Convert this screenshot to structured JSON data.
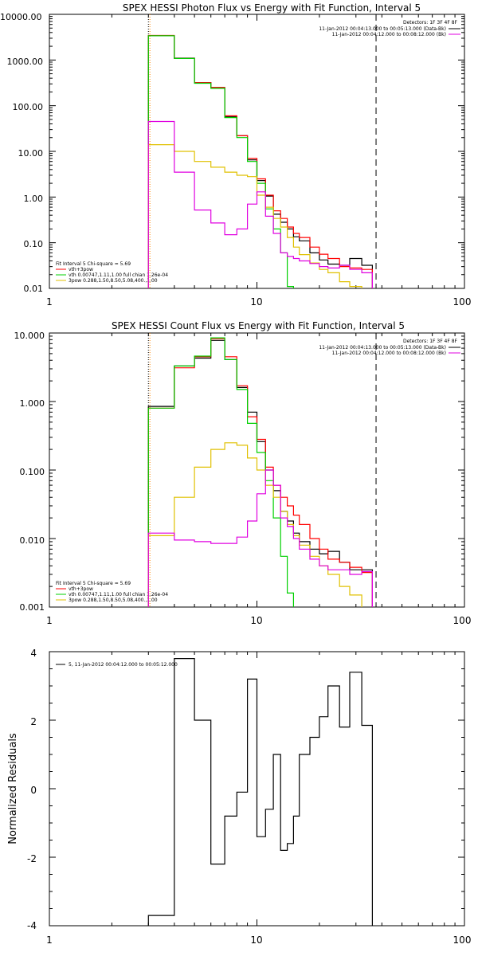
{
  "colors": {
    "black": "#000000",
    "red": "#ff0000",
    "green": "#00d000",
    "magenta": "#e000e0",
    "yellow": "#e0c000",
    "orange": "#ff8800"
  },
  "chart_data": [
    {
      "type": "line",
      "title": "SPEX HESSI Photon Flux vs Energy with Fit Function, Interval 5",
      "xscale": "log",
      "yscale": "log",
      "xlim": [
        1,
        100
      ],
      "ylim": [
        0.01,
        10000
      ],
      "xticks": [
        1,
        10,
        100
      ],
      "xtick_labels": [
        "1",
        "10",
        "100"
      ],
      "yticks": [
        0.01,
        0.1,
        1,
        10,
        100,
        1000,
        10000
      ],
      "ytick_labels": [
        "0.01",
        "0.10",
        "1.00",
        "10.00",
        "100.00",
        "1000.00",
        "10000.00"
      ],
      "vlines": [
        {
          "x": 3.0,
          "style": "dotted",
          "color": "black"
        },
        {
          "x": 3.05,
          "style": "dotted",
          "color": "orange"
        },
        {
          "x": 37.5,
          "style": "dashed",
          "color": "black"
        }
      ],
      "legend_top_right": [
        {
          "text": "Detectors: 1F 3F 4F 8F",
          "color": ""
        },
        {
          "text": "11-Jan-2012 00:04:13.000 to 00:05:13.000 (Data-Bk)",
          "color": "black"
        },
        {
          "text": "11-Jan-2012 00:04:12.000 to 00:08:12.000 (Bk)",
          "color": "magenta"
        }
      ],
      "legend_bottom_left": [
        {
          "text": "Fit Interval 5   Chi-square = 5.69",
          "color": ""
        },
        {
          "text": "vth+3pow",
          "color": "red"
        },
        {
          "text": "vth 0.00747,1.11,1.00  full chian 1.26e-04",
          "color": "green"
        },
        {
          "text": "3pow 0.288,1.50,8.50,5.08,400.,1.00",
          "color": "yellow"
        }
      ],
      "x_edges": [
        3.0,
        4.0,
        5.0,
        6.0,
        7.0,
        8.0,
        9.0,
        10.0,
        11.0,
        12.0,
        13.0,
        14.0,
        15.0,
        16.0,
        18.0,
        20.0,
        22.0,
        25.0,
        28.0,
        32.0,
        36.0
      ],
      "series": [
        {
          "color_key": "black",
          "values": [
            3400,
            1100,
            320,
            250,
            57,
            22,
            6.5,
            2.3,
            1.05,
            0.42,
            0.28,
            0.2,
            0.135,
            0.11,
            0.06,
            0.042,
            0.034,
            0.032,
            0.045,
            0.032
          ]
        },
        {
          "color_key": "red",
          "values": [
            3450,
            1080,
            320,
            250,
            60,
            22,
            7.0,
            2.5,
            1.1,
            0.5,
            0.34,
            0.22,
            0.16,
            0.13,
            0.08,
            0.056,
            0.045,
            0.03,
            0.028,
            0.026
          ]
        },
        {
          "color_key": "green",
          "values": [
            3400,
            1080,
            310,
            240,
            55,
            20,
            6.0,
            2.0,
            0.55,
            0.2,
            0.06,
            0.011,
            null,
            null,
            null,
            null,
            null,
            null,
            null,
            null
          ]
        },
        {
          "color_key": "yellow",
          "values": [
            14,
            10,
            6.0,
            4.5,
            3.5,
            3.0,
            2.8,
            1.1,
            0.6,
            0.34,
            0.22,
            0.13,
            0.08,
            0.055,
            0.036,
            0.026,
            0.022,
            0.014,
            0.011,
            null
          ]
        },
        {
          "color_key": "magenta",
          "values": [
            45,
            3.5,
            0.52,
            0.27,
            0.15,
            0.2,
            0.7,
            1.3,
            0.38,
            0.16,
            0.06,
            0.05,
            0.045,
            0.04,
            0.035,
            0.03,
            0.028,
            0.032,
            0.026,
            0.022
          ]
        }
      ]
    },
    {
      "type": "line",
      "title": "SPEX HESSI Count Flux vs Energy with Fit Function, Interval 5",
      "xscale": "log",
      "yscale": "log",
      "xlim": [
        1,
        100
      ],
      "ylim": [
        0.001,
        10
      ],
      "xticks": [
        1,
        10,
        100
      ],
      "xtick_labels": [
        "1",
        "10",
        "100"
      ],
      "yticks": [
        0.001,
        0.01,
        0.1,
        1,
        10
      ],
      "ytick_labels": [
        "0.001",
        "0.010",
        "0.100",
        "1.000",
        "10.000"
      ],
      "vlines": [
        {
          "x": 3.0,
          "style": "dotted",
          "color": "black"
        },
        {
          "x": 3.05,
          "style": "dotted",
          "color": "orange"
        },
        {
          "x": 37.5,
          "style": "dashed",
          "color": "black"
        }
      ],
      "legend_top_right": [
        {
          "text": "Detectors: 1F 3F 4F 8F",
          "color": ""
        },
        {
          "text": "11-Jan-2012 00:04:13.000 to 00:05:13.000 (Data-Bk)",
          "color": "black"
        },
        {
          "text": "11-Jan-2012 00:04:12.000 to 00:08:12.000 (Bk)",
          "color": "magenta"
        }
      ],
      "legend_bottom_left": [
        {
          "text": "Fit Interval 5   Chi-square = 5.69",
          "color": ""
        },
        {
          "text": "vth+3pow",
          "color": "red"
        },
        {
          "text": "vth 0.00747,1.11,1.00  full chian 1.26e-04",
          "color": "green"
        },
        {
          "text": "3pow 0.288,1.50,8.50,5.08,400.,1.00",
          "color": "yellow"
        }
      ],
      "x_edges": [
        3.0,
        4.0,
        5.0,
        6.0,
        7.0,
        8.0,
        9.0,
        10.0,
        11.0,
        12.0,
        13.0,
        14.0,
        15.0,
        16.0,
        18.0,
        20.0,
        22.0,
        25.0,
        28.0,
        32.0,
        36.0
      ],
      "series": [
        {
          "color_key": "black",
          "values": [
            0.85,
            3.3,
            4.3,
            7.8,
            4.1,
            1.6,
            0.7,
            0.26,
            0.1,
            0.05,
            0.025,
            0.018,
            0.012,
            0.009,
            0.007,
            0.006,
            0.0065,
            0.0045,
            0.0035,
            0.0035
          ]
        },
        {
          "color_key": "red",
          "values": [
            0.8,
            3.1,
            4.5,
            8.3,
            4.5,
            1.7,
            0.6,
            0.28,
            0.11,
            0.06,
            0.04,
            0.03,
            0.022,
            0.016,
            0.01,
            0.007,
            0.005,
            0.0045,
            0.0038,
            0.0032
          ]
        },
        {
          "color_key": "green",
          "values": [
            0.8,
            3.3,
            4.6,
            8.5,
            4.1,
            1.5,
            0.48,
            0.18,
            0.07,
            0.02,
            0.0055,
            0.0016,
            null,
            null,
            null,
            null,
            null,
            null,
            null,
            null
          ]
        },
        {
          "color_key": "yellow",
          "values": [
            0.011,
            0.04,
            0.11,
            0.2,
            0.25,
            0.23,
            0.15,
            0.1,
            0.06,
            0.04,
            0.025,
            0.016,
            0.011,
            0.008,
            0.0055,
            0.004,
            0.003,
            0.002,
            0.0015,
            null
          ]
        },
        {
          "color_key": "magenta",
          "values": [
            0.012,
            0.0095,
            0.009,
            0.0085,
            0.0085,
            0.0105,
            0.018,
            0.045,
            0.1,
            0.06,
            0.02,
            0.015,
            0.01,
            0.007,
            0.005,
            0.004,
            0.0035,
            0.0035,
            0.003,
            0.0033
          ]
        }
      ]
    },
    {
      "type": "line",
      "title": "",
      "xscale": "log",
      "yscale": "linear",
      "xlim": [
        1,
        100
      ],
      "ylim": [
        -4,
        4
      ],
      "xticks": [
        1,
        10,
        100
      ],
      "xtick_labels": [
        "1",
        "10",
        "100"
      ],
      "yticks": [
        -4,
        -2,
        0,
        2,
        4
      ],
      "ytick_labels": [
        "-4",
        "-2",
        "0",
        "2",
        "4"
      ],
      "ylabel": "Normalized  Residuals",
      "legend_top_left": [
        {
          "text": "5, 11-Jan-2012 00:04:12.000 to 00:05:12.000",
          "color": "black"
        }
      ],
      "x_edges": [
        3.0,
        4.0,
        5.0,
        6.0,
        7.0,
        8.0,
        9.0,
        10.0,
        11.0,
        12.0,
        13.0,
        14.0,
        15.0,
        16.0,
        18.0,
        20.0,
        22.0,
        25.0,
        28.0,
        32.0,
        36.0
      ],
      "series": [
        {
          "color_key": "black",
          "values": [
            -3.7,
            3.8,
            2.0,
            -2.2,
            -0.8,
            -0.1,
            3.2,
            -1.4,
            -0.6,
            1.0,
            -1.8,
            -1.6,
            -0.8,
            1.0,
            1.5,
            2.1,
            3.0,
            1.8,
            3.4,
            1.85
          ]
        }
      ]
    }
  ]
}
